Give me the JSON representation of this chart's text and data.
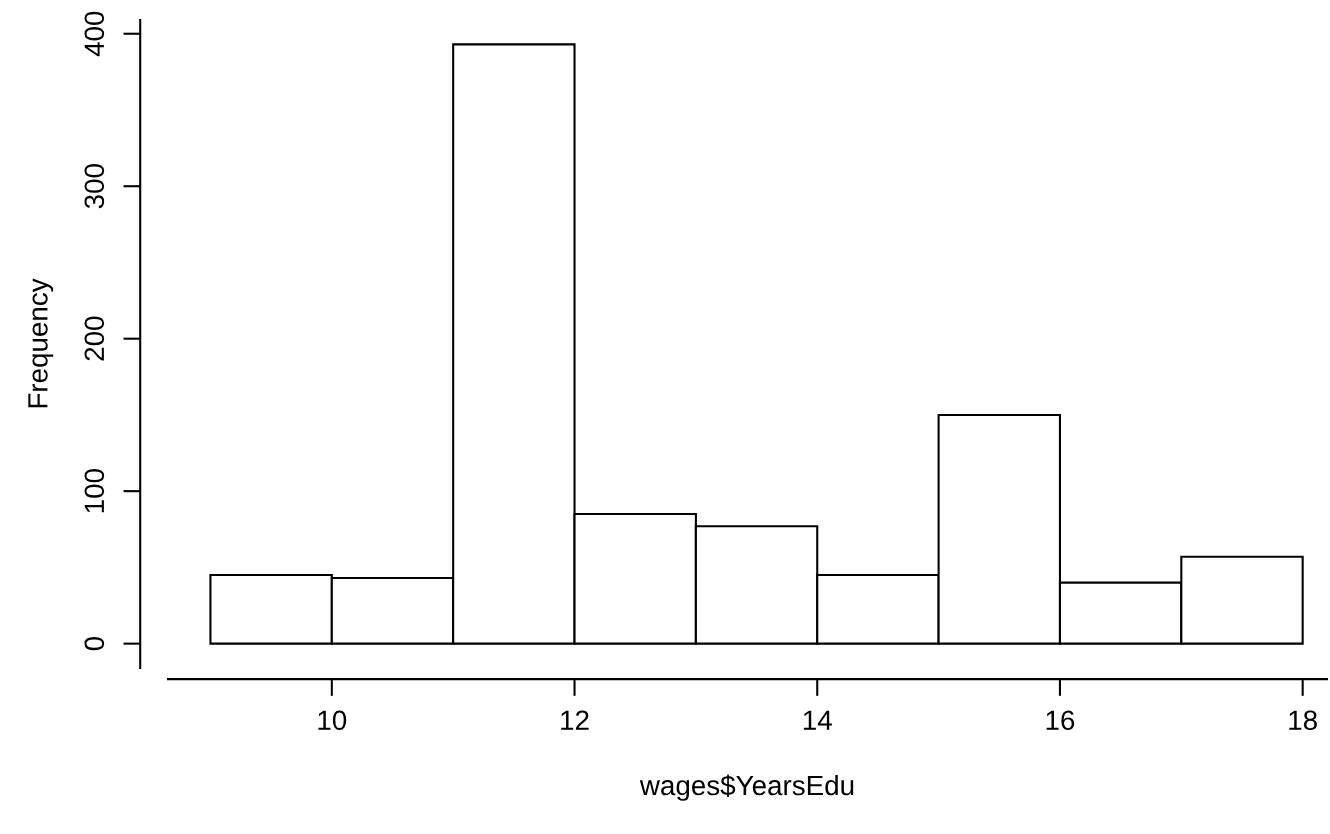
{
  "chart_data": {
    "type": "histogram",
    "xlabel": "wages$YearsEdu",
    "ylabel": "Frequency",
    "bins": [
      9,
      10,
      11,
      12,
      13,
      14,
      15,
      16,
      17,
      18
    ],
    "values": [
      45,
      43,
      393,
      85,
      77,
      45,
      150,
      40,
      57
    ],
    "color": "#ffffff",
    "xlim": [
      8.65,
      18.2
    ],
    "ylim": [
      -16,
      409
    ],
    "xticks": [
      10,
      12,
      14,
      16,
      18
    ],
    "yticks": [
      0,
      100,
      200,
      300,
      400
    ],
    "grid": false
  }
}
